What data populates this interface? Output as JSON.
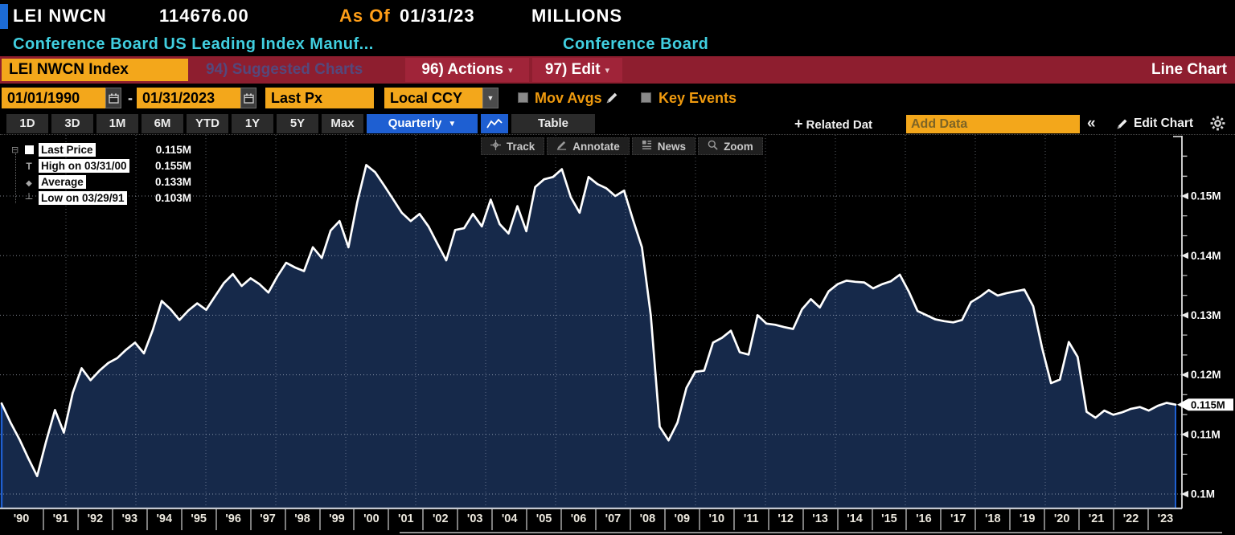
{
  "header": {
    "ticker": "LEI NWCN",
    "value": "114676.00",
    "as_of_label": "As Of",
    "as_of_date": "01/31/23",
    "units": "MILLIONS",
    "description": "Conference Board US Leading Index Manuf...",
    "source": "Conference Board"
  },
  "menubar": {
    "ticker_box": "LEI NWCN Index",
    "suggested_charts": "94) Suggested Charts",
    "actions": "96) Actions",
    "edit": "97) Edit",
    "chart_type": "Line Chart"
  },
  "controls": {
    "date_from": "01/01/1990",
    "date_separator": "-",
    "date_to": "01/31/2023",
    "price_field": "Last Px",
    "currency": "Local CCY",
    "mov_avgs_label": "Mov Avgs",
    "key_events_label": "Key Events"
  },
  "toolbar": {
    "ranges": [
      "1D",
      "3D",
      "1M",
      "6M",
      "YTD",
      "1Y",
      "5Y",
      "Max"
    ],
    "period": "Quarterly",
    "table_label": "Table",
    "related_label": "Related Dat",
    "add_data_placeholder": "Add Data",
    "collapse_glyph": "«",
    "edit_chart_label": "Edit Chart"
  },
  "chart_tools": [
    "Track",
    "Annotate",
    "News",
    "Zoom"
  ],
  "legend": {
    "rows": [
      {
        "marker": "square",
        "label": "Last Price",
        "value": "0.115M"
      },
      {
        "marker": "high",
        "label": "High on 03/31/00",
        "value": "0.155M"
      },
      {
        "marker": "avg",
        "label": "Average",
        "value": "0.133M"
      },
      {
        "marker": "low",
        "label": "Low on 03/29/91",
        "value": "0.103M"
      }
    ]
  },
  "colors": {
    "accent_orange": "#f3a71b",
    "bar_red": "#8e1e2f",
    "tile_red": "#a02439",
    "active_blue": "#1e5fd2",
    "cyan": "#41cfe0",
    "amber": "#ef9a0e",
    "fill_navy": "#16294a",
    "line_white": "#ffffff"
  },
  "chart_data": {
    "type": "area",
    "title": "Conference Board US Leading Index Manuf...",
    "series_name": "Last Price",
    "frequency": "Quarterly",
    "unit": "M",
    "x_start": 1990.0,
    "x_end": 2023.08,
    "ylim": [
      0.097,
      0.16
    ],
    "grid": true,
    "legend_position": "top-left",
    "x_labels": [
      "'90",
      "'91",
      "'92",
      "'93",
      "'94",
      "'95",
      "'96",
      "'97",
      "'98",
      "'99",
      "'00",
      "'01",
      "'02",
      "'03",
      "'04",
      "'05",
      "'06",
      "'07",
      "'08",
      "'09",
      "'10",
      "'11",
      "'12",
      "'13",
      "'14",
      "'15",
      "'16",
      "'17",
      "'18",
      "'19",
      "'20",
      "'21",
      "'22",
      "'23"
    ],
    "grid_years": [
      1992,
      1994,
      1996,
      1998,
      2000,
      2002,
      2004,
      2006,
      2008,
      2010,
      2012,
      2014,
      2016,
      2018,
      2020,
      2022
    ],
    "y_ticks": [
      {
        "v": 0.1,
        "label": "0.1M"
      },
      {
        "v": 0.11,
        "label": "0.11M"
      },
      {
        "v": 0.12,
        "label": "0.12M"
      },
      {
        "v": 0.13,
        "label": "0.13M"
      },
      {
        "v": 0.14,
        "label": "0.14M"
      },
      {
        "v": 0.15,
        "label": "0.15M"
      }
    ],
    "last_price": {
      "v": 0.115,
      "label": "0.115M"
    },
    "stats": {
      "last": "0.115M",
      "high_date": "03/31/00",
      "high": "0.155M",
      "average": "0.133M",
      "low_date": "03/29/91",
      "low": "0.103M"
    },
    "values": [
      0.1152,
      0.112,
      0.1092,
      0.106,
      0.103,
      0.1088,
      0.1141,
      0.1103,
      0.117,
      0.1211,
      0.1191,
      0.1207,
      0.122,
      0.1228,
      0.1242,
      0.1254,
      0.1236,
      0.1275,
      0.1324,
      0.131,
      0.1292,
      0.1308,
      0.132,
      0.1309,
      0.1332,
      0.1354,
      0.1369,
      0.1349,
      0.1362,
      0.1352,
      0.1338,
      0.1365,
      0.1388,
      0.138,
      0.1374,
      0.1414,
      0.1396,
      0.1442,
      0.1458,
      0.1414,
      0.149,
      0.1552,
      0.154,
      0.1518,
      0.1495,
      0.1472,
      0.1458,
      0.147,
      0.1449,
      0.142,
      0.1392,
      0.1443,
      0.1446,
      0.147,
      0.1449,
      0.1494,
      0.1453,
      0.1437,
      0.1483,
      0.1441,
      0.1515,
      0.1528,
      0.1532,
      0.1545,
      0.1498,
      0.1472,
      0.1532,
      0.152,
      0.1513,
      0.15,
      0.1509,
      0.146,
      0.1414,
      0.13,
      0.1113,
      0.109,
      0.112,
      0.1178,
      0.1205,
      0.1207,
      0.1254,
      0.1262,
      0.1274,
      0.1238,
      0.1234,
      0.13,
      0.1286,
      0.1284,
      0.128,
      0.1277,
      0.131,
      0.1327,
      0.1313,
      0.134,
      0.1352,
      0.1358,
      0.1356,
      0.1355,
      0.1345,
      0.1352,
      0.1357,
      0.1368,
      0.134,
      0.1307,
      0.13,
      0.1293,
      0.129,
      0.1288,
      0.1292,
      0.1322,
      0.1331,
      0.1342,
      0.1333,
      0.1337,
      0.134,
      0.1343,
      0.1315,
      0.1245,
      0.1186,
      0.1192,
      0.1255,
      0.123,
      0.1138,
      0.1128,
      0.114,
      0.1133,
      0.1137,
      0.1143,
      0.1146,
      0.114,
      0.1148,
      0.1153,
      0.115
    ]
  }
}
